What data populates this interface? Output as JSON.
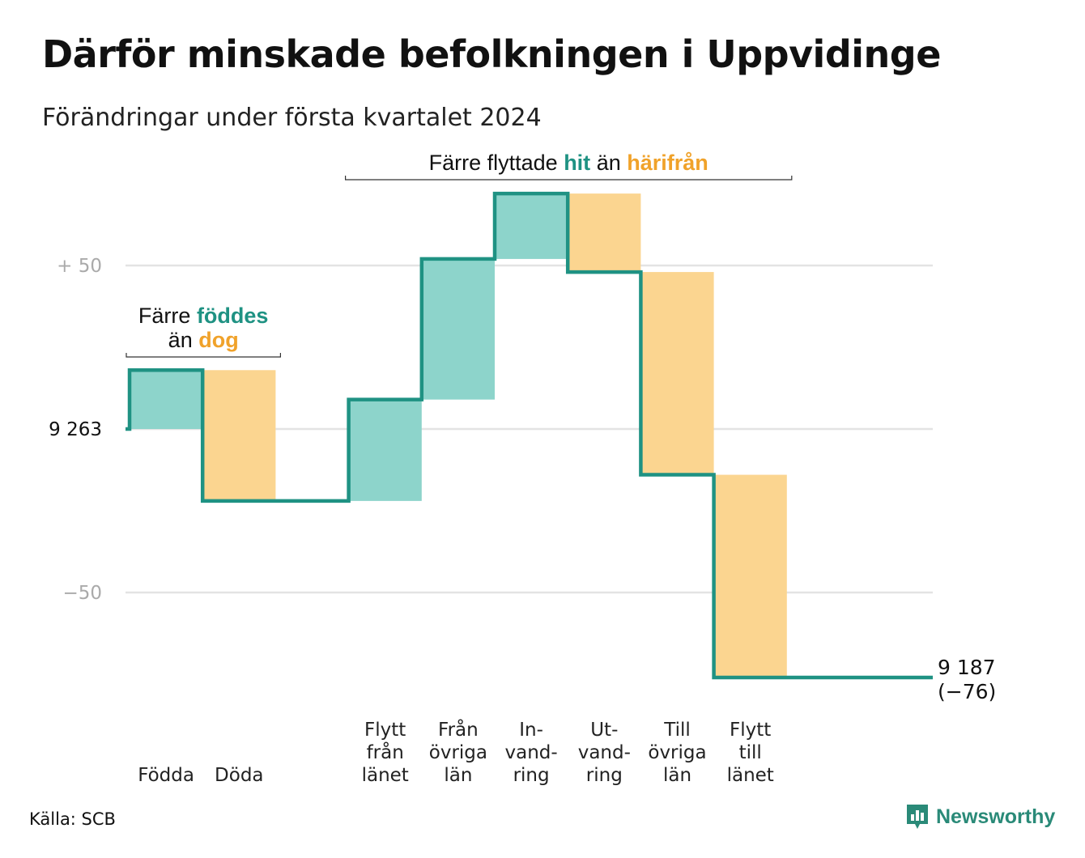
{
  "title": "Därför minskade befolkningen i Uppvidinge",
  "subtitle": "Förändringar under första kvartalet 2024",
  "source": "Källa: SCB",
  "brand": "Newsworthy",
  "colors": {
    "increase_fill": "#8dd4cb",
    "decrease_fill": "#fbd590",
    "line": "#1f9283",
    "accent_text_teal": "#1f9283",
    "accent_text_orange": "#f0a22a",
    "grid": "#e3e3e3",
    "tick_faint": "#aaaaaa"
  },
  "chart_data": {
    "type": "waterfall",
    "start_value": 9263,
    "end_value": 9187,
    "end_label": [
      "9 187",
      "(−76)"
    ],
    "start_label": "9 263",
    "yticks": [
      {
        "value": 50,
        "label": "+  50"
      },
      {
        "value": 0,
        "label": "9  263"
      },
      {
        "value": -50,
        "label": "−50"
      }
    ],
    "ylim": [
      -76,
      72
    ],
    "steps": [
      {
        "label": [
          "Födda"
        ],
        "value": 18,
        "kind": "increase"
      },
      {
        "label": [
          "Döda"
        ],
        "value": -40,
        "kind": "decrease"
      },
      {
        "label": [],
        "value": 0,
        "kind": "gap"
      },
      {
        "label": [
          "Flytt",
          "från",
          "länet"
        ],
        "value": 31,
        "kind": "increase"
      },
      {
        "label": [
          "Från",
          "övriga",
          "län"
        ],
        "value": 43,
        "kind": "increase"
      },
      {
        "label": [
          "In-",
          "vand-",
          "ring"
        ],
        "value": 20,
        "kind": "increase"
      },
      {
        "label": [
          "Ut-",
          "vand-",
          "ring"
        ],
        "value": -24,
        "kind": "decrease"
      },
      {
        "label": [
          "Till",
          "övriga",
          "län"
        ],
        "value": -62,
        "kind": "decrease"
      },
      {
        "label": [
          "Flytt",
          "till",
          "länet"
        ],
        "value": -62,
        "kind": "decrease"
      }
    ],
    "annotations": [
      {
        "lines": [
          [
            {
              "text": "Färre ",
              "style": "plain"
            },
            {
              "text": "föddes",
              "style": "teal"
            }
          ],
          [
            {
              "text": "än ",
              "style": "plain"
            },
            {
              "text": "dog",
              "style": "orange"
            }
          ]
        ],
        "span": [
          0,
          1
        ]
      },
      {
        "lines": [
          [
            {
              "text": "Färre flyttade ",
              "style": "plain"
            },
            {
              "text": "hit",
              "style": "teal"
            },
            {
              "text": "  än ",
              "style": "plain"
            },
            {
              "text": "härifrån",
              "style": "orange"
            }
          ]
        ],
        "span": [
          3,
          8
        ]
      }
    ]
  }
}
